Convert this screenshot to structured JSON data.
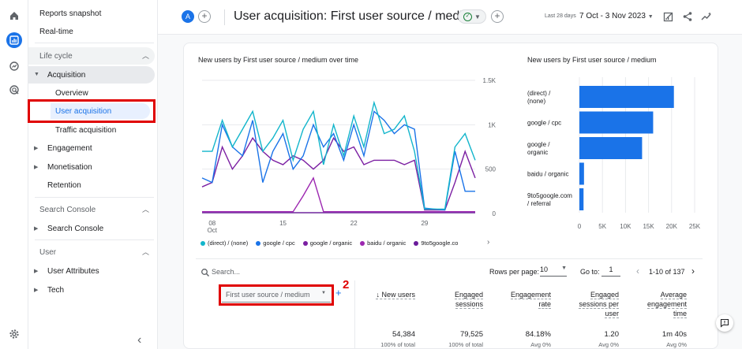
{
  "sidebar": {
    "reports_snapshot": "Reports snapshot",
    "realtime": "Real-time",
    "life_cycle": "Life cycle",
    "acquisition": "Acquisition",
    "overview": "Overview",
    "user_acquisition": "User acquisition",
    "traffic_acquisition": "Traffic acquisition",
    "engagement": "Engagement",
    "monetisation": "Monetisation",
    "retention": "Retention",
    "search_console_section": "Search Console",
    "search_console": "Search Console",
    "user_section": "User",
    "user_attributes": "User Attributes",
    "tech": "Tech",
    "collapse_glyph": "‹"
  },
  "annotations": {
    "n1": "1",
    "n2": "2"
  },
  "header": {
    "avatar": "A",
    "title": "User acquisition: First user source / medium",
    "date_label": "Last 28 days",
    "date_range": "7 Oct - 3 Nov 2023"
  },
  "line_chart": {
    "title": "New users by First user source / medium over time",
    "y_ticks": [
      "1.5K",
      "1K",
      "500",
      "0"
    ],
    "x_ticks": [
      "08",
      "15",
      "22",
      "29"
    ],
    "x_sub": "Oct",
    "legend": [
      "(direct) / (none)",
      "google / cpc",
      "google / organic",
      "baidu / organic",
      "9to5google.co"
    ]
  },
  "bar_chart": {
    "title": "New users by First user source / medium",
    "labels": [
      "(direct) /\n(none)",
      "google / cpc",
      "google /\norganic",
      "baidu / organic",
      "9to5google.com\n/ referral"
    ],
    "x_ticks": [
      "0",
      "5K",
      "10K",
      "15K",
      "20K",
      "25K"
    ]
  },
  "chart_data": [
    {
      "type": "line",
      "title": "New users by First user source / medium over time",
      "x": [
        "7 Oct",
        "8 Oct",
        "9 Oct",
        "10 Oct",
        "11 Oct",
        "12 Oct",
        "13 Oct",
        "14 Oct",
        "15 Oct",
        "16 Oct",
        "17 Oct",
        "18 Oct",
        "19 Oct",
        "20 Oct",
        "21 Oct",
        "22 Oct",
        "23 Oct",
        "24 Oct",
        "25 Oct",
        "26 Oct",
        "27 Oct",
        "28 Oct",
        "29 Oct",
        "30 Oct",
        "31 Oct",
        "1 Nov",
        "2 Nov",
        "3 Nov"
      ],
      "ylim": [
        0,
        1500
      ],
      "series": [
        {
          "name": "(direct) / (none)",
          "color": "#12b5cb",
          "values": [
            700,
            700,
            1050,
            750,
            950,
            1150,
            700,
            850,
            1050,
            600,
            950,
            1150,
            550,
            1000,
            650,
            1100,
            750,
            1250,
            900,
            950,
            1100,
            700,
            50,
            50,
            50,
            750,
            900,
            600
          ]
        },
        {
          "name": "google / cpc",
          "color": "#1a73e8",
          "values": [
            400,
            350,
            1000,
            750,
            650,
            1050,
            350,
            700,
            900,
            500,
            650,
            1000,
            750,
            900,
            600,
            1000,
            650,
            1150,
            1050,
            900,
            1000,
            950,
            60,
            50,
            40,
            700,
            250,
            250
          ]
        },
        {
          "name": "google / organic",
          "color": "#7b1fa2",
          "values": [
            300,
            350,
            750,
            500,
            650,
            850,
            700,
            600,
            550,
            650,
            600,
            500,
            600,
            850,
            700,
            750,
            550,
            600,
            600,
            600,
            550,
            600,
            40,
            40,
            40,
            350,
            700,
            400
          ]
        },
        {
          "name": "baidu / organic",
          "color": "#9c27b0",
          "values": [
            20,
            20,
            20,
            20,
            20,
            20,
            20,
            20,
            20,
            20,
            200,
            400,
            20,
            20,
            20,
            20,
            20,
            20,
            20,
            20,
            20,
            20,
            20,
            20,
            20,
            20,
            20,
            20
          ]
        },
        {
          "name": "9to5google.co",
          "color": "#6a1b9a",
          "values": [
            10,
            10,
            10,
            10,
            10,
            10,
            10,
            10,
            10,
            10,
            10,
            10,
            10,
            10,
            10,
            10,
            10,
            10,
            10,
            10,
            10,
            10,
            10,
            10,
            10,
            10,
            10,
            10
          ]
        }
      ],
      "y_ticks": [
        "0",
        "500",
        "1K",
        "1.5K"
      ]
    },
    {
      "type": "bar",
      "orientation": "horizontal",
      "title": "New users by First user source / medium",
      "categories": [
        "(direct) / (none)",
        "google / cpc",
        "google / organic",
        "baidu / organic",
        "9to5google.com / referral"
      ],
      "values": [
        20500,
        16000,
        13600,
        1000,
        900
      ],
      "xlim": [
        0,
        25000
      ],
      "color": "#1a73e8"
    }
  ],
  "table": {
    "search_placeholder": "Search...",
    "rows_per_page_label": "Rows per page:",
    "rows_per_page": "10",
    "goto_label": "Go to:",
    "goto_value": "1",
    "pager_text": "1-10 of 137",
    "dimension": "First user source / medium",
    "columns": [
      {
        "h1": "↓ New users",
        "h2": "",
        "h3": "",
        "value": "54,384",
        "sub": "100% of total"
      },
      {
        "h1": "Engaged",
        "h2": "sessions",
        "h3": "",
        "value": "79,525",
        "sub": "100% of total"
      },
      {
        "h1": "Engagement",
        "h2": "rate",
        "h3": "",
        "value": "84.18%",
        "sub": "Avg 0%"
      },
      {
        "h1": "Engaged",
        "h2": "sessions per",
        "h3": "user",
        "value": "1.20",
        "sub": "Avg 0%"
      },
      {
        "h1": "Average",
        "h2": "engagement",
        "h3": "time",
        "value": "1m 40s",
        "sub": "Avg 0%"
      }
    ]
  }
}
